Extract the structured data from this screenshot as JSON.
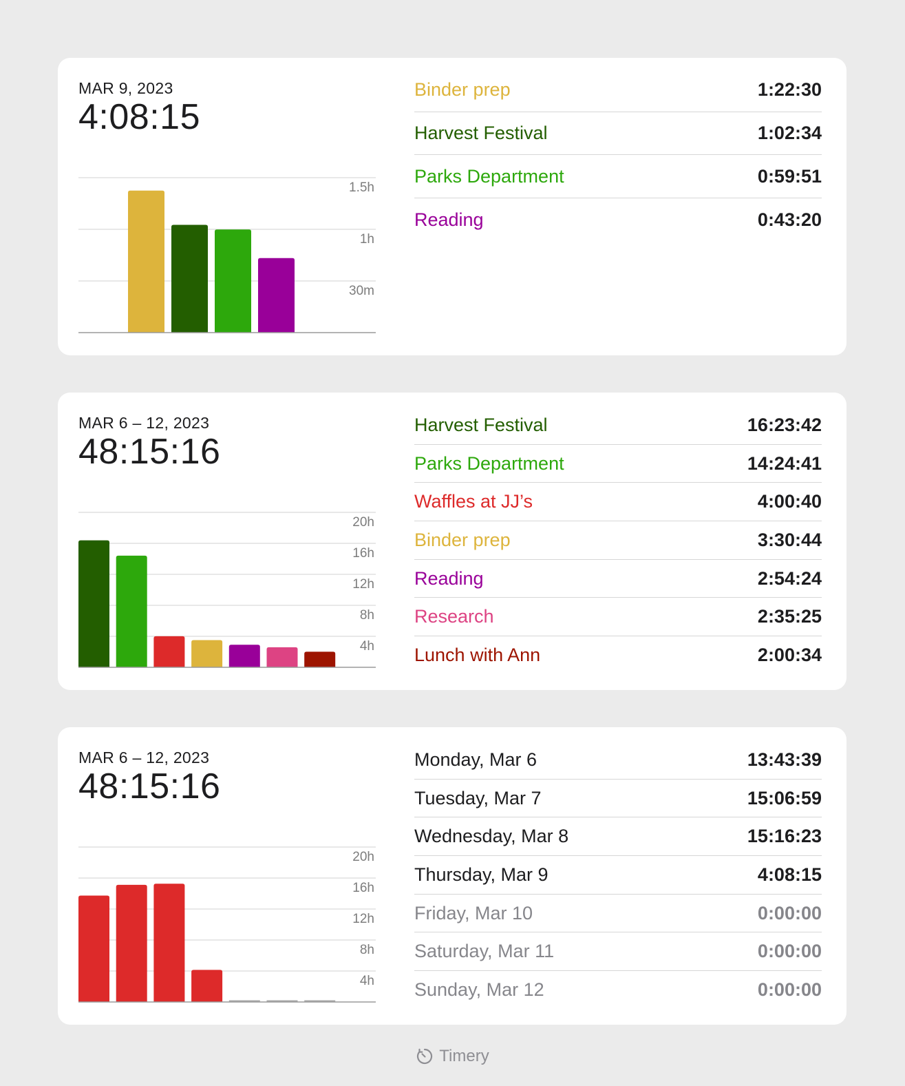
{
  "cards": [
    {
      "date_label": "MAR 9, 2023",
      "total": "4:08:15",
      "chart_data": {
        "type": "bar",
        "categories": [
          "Binder prep",
          "Harvest Festival",
          "Parks Department",
          "Reading"
        ],
        "values": [
          1.375,
          1.043,
          0.998,
          0.722
        ],
        "unit": "hours",
        "ylim": [
          0,
          1.5
        ],
        "yticks": [
          {
            "value": 0.5,
            "label": "30m"
          },
          {
            "value": 1,
            "label": "1h"
          },
          {
            "value": 1.5,
            "label": "1.5h"
          }
        ],
        "colors": [
          "#ddb43c",
          "#235e00",
          "#2da80c",
          "#990099"
        ],
        "grid": true,
        "axis_position": "right"
      },
      "rows": [
        {
          "label": "Binder prep",
          "value": "1:22:30",
          "color": "#ddb43c"
        },
        {
          "label": "Harvest Festival",
          "value": "1:02:34",
          "color": "#235e00"
        },
        {
          "label": "Parks Department",
          "value": "0:59:51",
          "color": "#2da80c"
        },
        {
          "label": "Reading",
          "value": "0:43:20",
          "color": "#990099"
        }
      ]
    },
    {
      "date_label": "MAR 6 – 12, 2023",
      "total": "48:15:16",
      "chart_data": {
        "type": "bar",
        "categories": [
          "Harvest Festival",
          "Parks Department",
          "Waffles at JJ’s",
          "Binder prep",
          "Reading",
          "Research",
          "Lunch with Ann"
        ],
        "values": [
          16.39,
          14.41,
          4.01,
          3.51,
          2.91,
          2.59,
          2.01
        ],
        "unit": "hours",
        "ylim": [
          0,
          20
        ],
        "yticks": [
          {
            "value": 4,
            "label": "4h"
          },
          {
            "value": 8,
            "label": "8h"
          },
          {
            "value": 12,
            "label": "12h"
          },
          {
            "value": 16,
            "label": "16h"
          },
          {
            "value": 20,
            "label": "20h"
          }
        ],
        "colors": [
          "#235e00",
          "#2da80c",
          "#dd2a2a",
          "#ddb43c",
          "#990099",
          "#dd4383",
          "#9d1400"
        ],
        "grid": true,
        "axis_position": "right"
      },
      "rows": [
        {
          "label": "Harvest Festival",
          "value": "16:23:42",
          "color": "#235e00"
        },
        {
          "label": "Parks Department",
          "value": "14:24:41",
          "color": "#2da80c"
        },
        {
          "label": "Waffles at JJ’s",
          "value": "4:00:40",
          "color": "#dd2a2a"
        },
        {
          "label": "Binder prep",
          "value": "3:30:44",
          "color": "#ddb43c"
        },
        {
          "label": "Reading",
          "value": "2:54:24",
          "color": "#990099"
        },
        {
          "label": "Research",
          "value": "2:35:25",
          "color": "#dd4383"
        },
        {
          "label": "Lunch with Ann",
          "value": "2:00:34",
          "color": "#9d1400"
        }
      ]
    },
    {
      "date_label": "MAR 6 – 12, 2023",
      "total": "48:15:16",
      "chart_data": {
        "type": "bar",
        "categories": [
          "Monday, Mar 6",
          "Tuesday, Mar 7",
          "Wednesday, Mar 8",
          "Thursday, Mar 9",
          "Friday, Mar 10",
          "Saturday, Mar 11",
          "Sunday, Mar 12"
        ],
        "values": [
          13.73,
          15.12,
          15.27,
          4.14,
          0,
          0,
          0
        ],
        "unit": "hours",
        "ylim": [
          0,
          20
        ],
        "yticks": [
          {
            "value": 4,
            "label": "4h"
          },
          {
            "value": 8,
            "label": "8h"
          },
          {
            "value": 12,
            "label": "12h"
          },
          {
            "value": 16,
            "label": "16h"
          },
          {
            "value": 20,
            "label": "20h"
          }
        ],
        "colors": [
          "#dd2a2a",
          "#dd2a2a",
          "#dd2a2a",
          "#dd2a2a",
          "#dd2a2a",
          "#dd2a2a",
          "#dd2a2a"
        ],
        "grid": true,
        "axis_position": "right"
      },
      "rows": [
        {
          "label": "Monday, Mar 6",
          "value": "13:43:39",
          "color": "#1d1d1f"
        },
        {
          "label": "Tuesday, Mar 7",
          "value": "15:06:59",
          "color": "#1d1d1f"
        },
        {
          "label": "Wednesday, Mar 8",
          "value": "15:16:23",
          "color": "#1d1d1f"
        },
        {
          "label": "Thursday, Mar 9",
          "value": "4:08:15",
          "color": "#1d1d1f"
        },
        {
          "label": "Friday, Mar 10",
          "value": "0:00:00",
          "color": "#86868b"
        },
        {
          "label": "Saturday, Mar 11",
          "value": "0:00:00",
          "color": "#86868b"
        },
        {
          "label": "Sunday, Mar 12",
          "value": "0:00:00",
          "color": "#86868b"
        }
      ]
    }
  ],
  "footer": {
    "app_name": "Timery",
    "icon": "timer-icon"
  }
}
